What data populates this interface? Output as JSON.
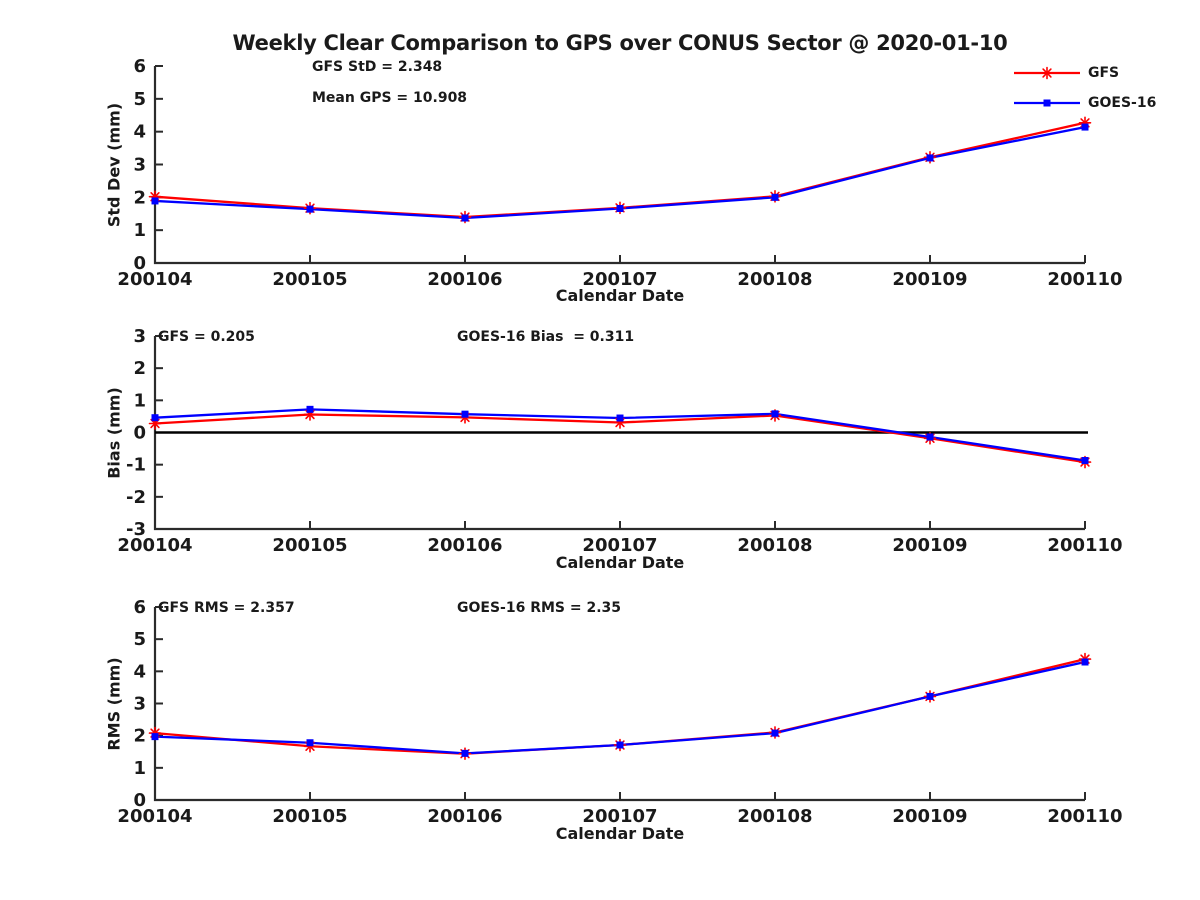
{
  "title": "Weekly Clear Comparison to GPS over CONUS Sector @ 2020-01-10",
  "colors": {
    "gfs": "#ff0000",
    "goes16": "#0000ff",
    "axis": "#2b2b2b",
    "text": "#1a1a1a",
    "zero_line": "#000000",
    "background": "#ffffff"
  },
  "legend": {
    "items": [
      {
        "label": "GFS",
        "color": "#ff0000",
        "marker": "asterisk"
      },
      {
        "label": "GOES-16",
        "color": "#0000ff",
        "marker": "square"
      }
    ]
  },
  "chart_data": [
    {
      "type": "line",
      "id": "stddev",
      "ylabel": "Std Dev (mm)",
      "xlabel": "Calendar Date",
      "ylim": [
        0,
        6
      ],
      "yticks": [
        0,
        1,
        2,
        3,
        4,
        5,
        6
      ],
      "grid": false,
      "categories": [
        "200104",
        "200105",
        "200106",
        "200107",
        "200108",
        "200109",
        "200110"
      ],
      "series": [
        {
          "name": "GFS",
          "color": "#ff0000",
          "marker": "asterisk",
          "values": [
            2.02,
            1.67,
            1.4,
            1.68,
            2.03,
            3.22,
            4.27
          ]
        },
        {
          "name": "GOES-16",
          "color": "#0000ff",
          "marker": "square",
          "values": [
            1.89,
            1.64,
            1.37,
            1.66,
            2.0,
            3.2,
            4.14
          ]
        }
      ],
      "annotations": [
        {
          "text": "GFS StD = 2.348"
        },
        {
          "text": "Mean GPS = 10.908"
        }
      ]
    },
    {
      "type": "line",
      "id": "bias",
      "ylabel": "Bias (mm)",
      "xlabel": "Calendar Date",
      "ylim": [
        -3,
        3
      ],
      "yticks": [
        -3,
        -2,
        -1,
        0,
        1,
        2,
        3
      ],
      "zero_line": true,
      "grid": false,
      "categories": [
        "200104",
        "200105",
        "200106",
        "200107",
        "200108",
        "200109",
        "200110"
      ],
      "series": [
        {
          "name": "GFS",
          "color": "#ff0000",
          "marker": "asterisk",
          "values": [
            0.28,
            0.56,
            0.47,
            0.31,
            0.53,
            -0.18,
            -0.92
          ]
        },
        {
          "name": "GOES-16",
          "color": "#0000ff",
          "marker": "square",
          "values": [
            0.46,
            0.72,
            0.57,
            0.45,
            0.58,
            -0.14,
            -0.87
          ]
        }
      ],
      "annotations": [
        {
          "text": "GFS = 0.205"
        },
        {
          "text": "GOES-16 Bias  = 0.311"
        }
      ]
    },
    {
      "type": "line",
      "id": "rms",
      "ylabel": "RMS (mm)",
      "xlabel": "Calendar Date",
      "ylim": [
        0,
        6
      ],
      "yticks": [
        0,
        1,
        2,
        3,
        4,
        5,
        6
      ],
      "grid": false,
      "categories": [
        "200104",
        "200105",
        "200106",
        "200107",
        "200108",
        "200109",
        "200110"
      ],
      "series": [
        {
          "name": "GFS",
          "color": "#ff0000",
          "marker": "asterisk",
          "values": [
            2.08,
            1.67,
            1.44,
            1.71,
            2.1,
            3.22,
            4.38
          ]
        },
        {
          "name": "GOES-16",
          "color": "#0000ff",
          "marker": "square",
          "values": [
            1.97,
            1.78,
            1.45,
            1.71,
            2.08,
            3.22,
            4.29
          ]
        }
      ],
      "annotations": [
        {
          "text": "GFS RMS = 2.357"
        },
        {
          "text": "GOES-16 RMS = 2.35"
        }
      ]
    }
  ]
}
